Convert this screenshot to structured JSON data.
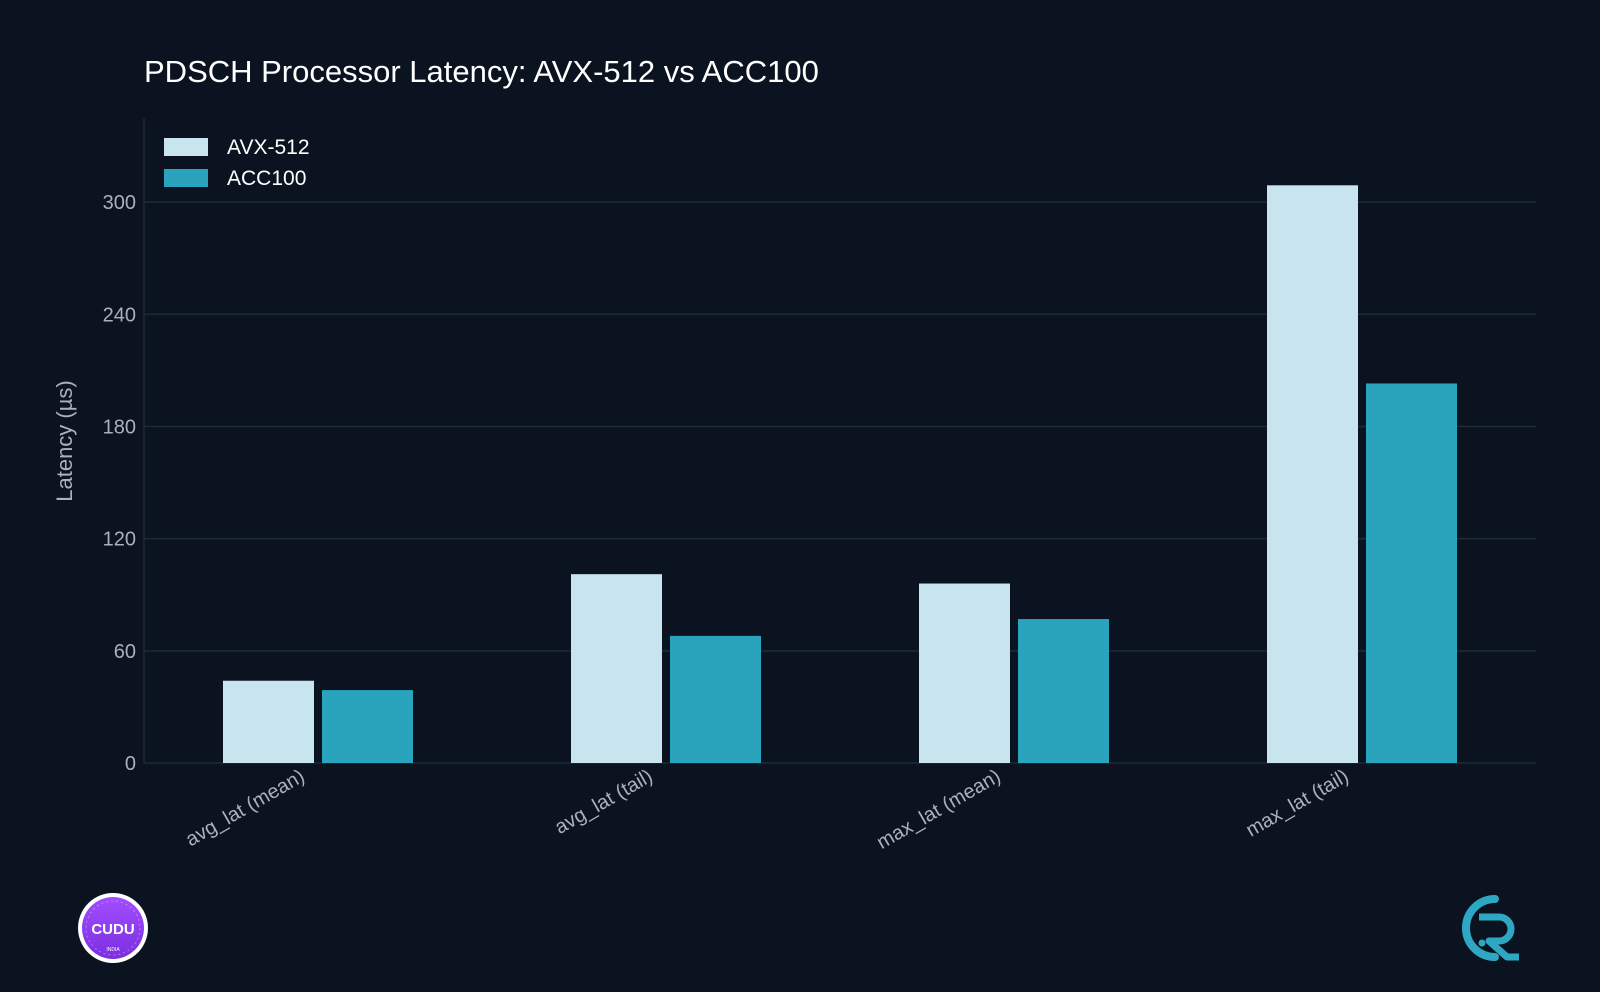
{
  "theme": {
    "background": "#0b1320",
    "grid": "#1d2b38",
    "axis_text": "#a9b1bb",
    "title_text": "#ffffff",
    "legend_text": "#ffffff"
  },
  "logos": {
    "left_text": "CUDU",
    "left_subtext": "INDIA",
    "left_color": "#8a3ff0",
    "right_color": "#2ea8c2"
  },
  "chart_data": {
    "type": "bar",
    "title": "PDSCH Processor Latency: AVX-512 vs ACC100",
    "xlabel": "",
    "ylabel": "Latency (µs)",
    "ylim": [
      0,
      345
    ],
    "yticks": [
      0,
      60,
      120,
      180,
      240,
      300
    ],
    "grid": true,
    "legend_position": "top-left",
    "categories": [
      "avg_lat (mean)",
      "avg_lat (tail)",
      "max_lat (mean)",
      "max_lat (tail)"
    ],
    "series": [
      {
        "name": "AVX-512",
        "color": "#c8e4ee",
        "values": [
          44,
          101,
          96,
          309
        ]
      },
      {
        "name": "ACC100",
        "color": "#2aa3bc",
        "values": [
          39,
          68,
          77,
          203
        ]
      }
    ]
  }
}
